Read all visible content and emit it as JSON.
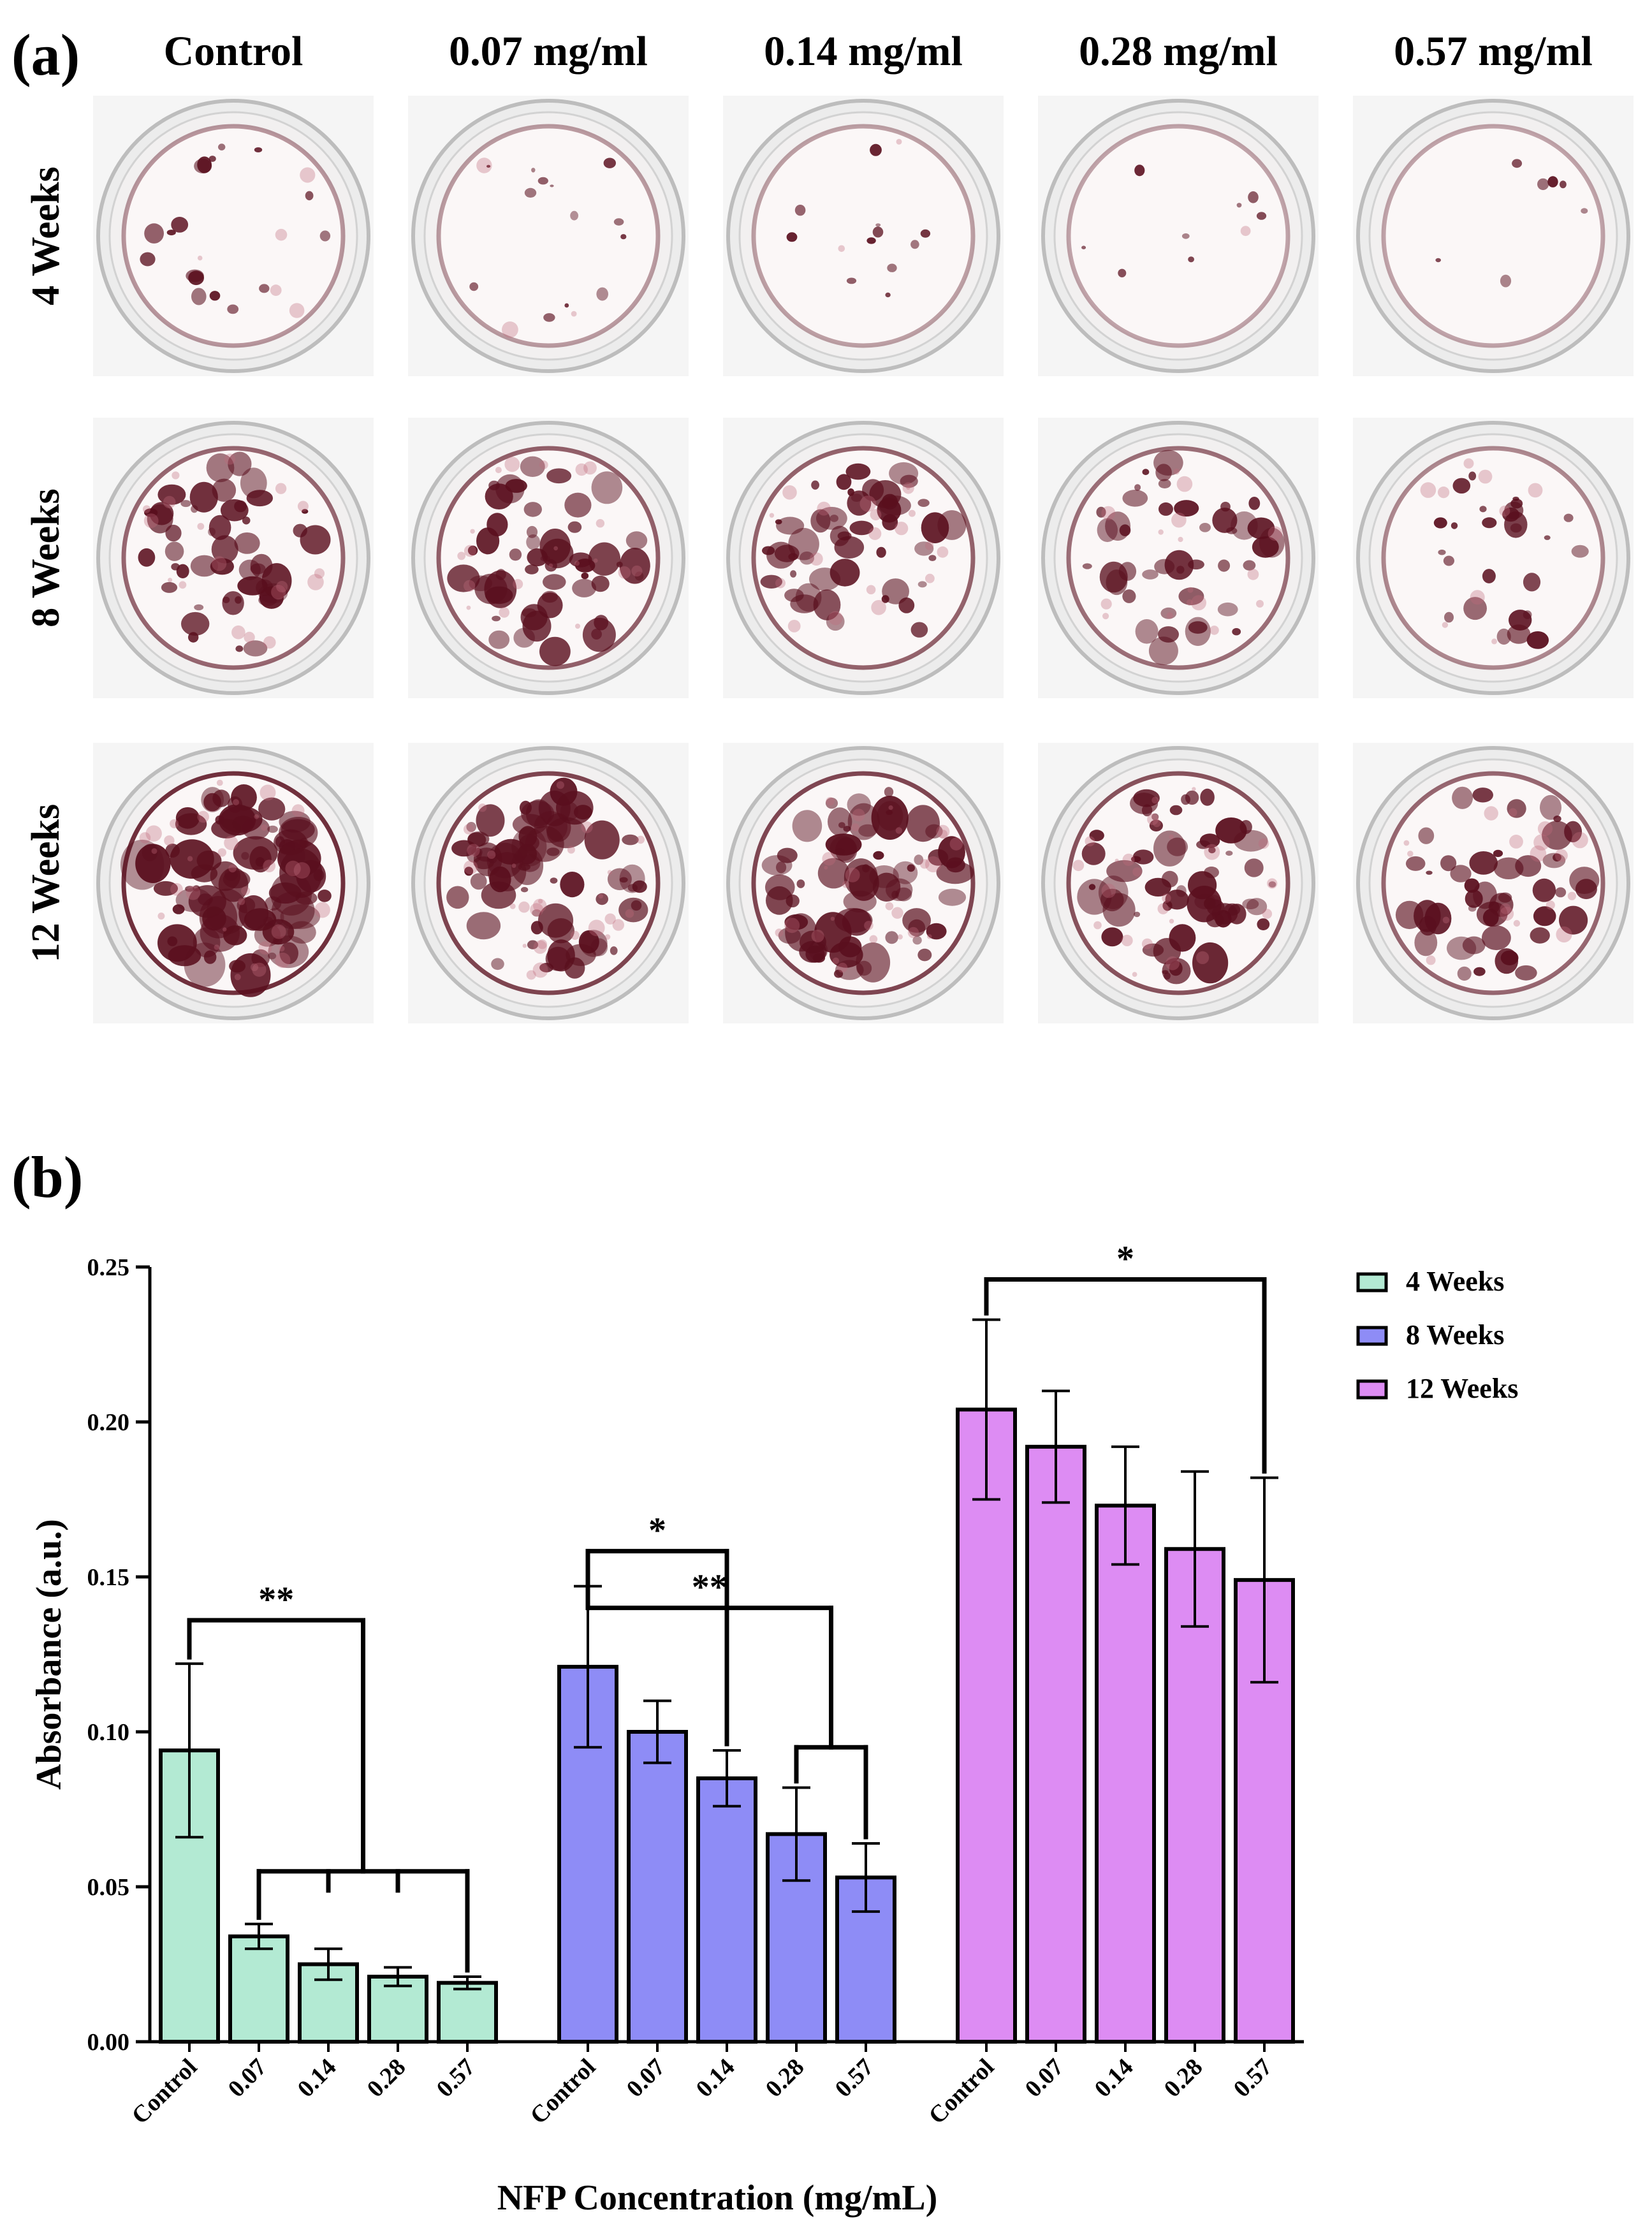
{
  "panel_a": {
    "label": "(a)",
    "columns": [
      "Control",
      "0.07 mg/ml",
      "0.14 mg/ml",
      "0.28 mg/ml",
      "0.57 mg/ml"
    ],
    "rows": [
      "4 Weeks",
      "8 Weeks",
      "12 Weeks"
    ],
    "stain_color": "#5a0f1e",
    "stain_level": [
      [
        0.12,
        0.08,
        0.05,
        0.02,
        0.01
      ],
      [
        0.45,
        0.5,
        0.48,
        0.4,
        0.22
      ],
      [
        0.85,
        0.7,
        0.68,
        0.6,
        0.45
      ]
    ]
  },
  "panel_b": {
    "label": "(b)",
    "chart_data": {
      "type": "bar",
      "title": "",
      "xlabel": "NFP  Concentration (mg/mL)",
      "ylabel": "Absorbance (a.u.)",
      "ylim": [
        0,
        0.25
      ],
      "yticks": [
        "0.00",
        "0.05",
        "0.10",
        "0.15",
        "0.20",
        "0.25"
      ],
      "categories": [
        "Control",
        "0.07",
        "0.14",
        "0.28",
        "0.57"
      ],
      "legend_position": "top-right",
      "series": [
        {
          "name": "4 Weeks",
          "color": "#b3ead3",
          "values": [
            0.094,
            0.034,
            0.025,
            0.021,
            0.019
          ],
          "errors": [
            0.028,
            0.004,
            0.005,
            0.003,
            0.002
          ]
        },
        {
          "name": "8 Weeks",
          "color": "#8e8cf6",
          "values": [
            0.121,
            0.1,
            0.085,
            0.067,
            0.053
          ],
          "errors": [
            0.026,
            0.01,
            0.009,
            0.015,
            0.011
          ]
        },
        {
          "name": "12 Weeks",
          "color": "#dd8cf3",
          "values": [
            0.204,
            0.192,
            0.173,
            0.159,
            0.149
          ],
          "errors": [
            0.029,
            0.018,
            0.019,
            0.025,
            0.033
          ]
        }
      ],
      "significance": [
        {
          "series": 0,
          "from": 0,
          "to": [
            1,
            2,
            3,
            4
          ],
          "label": "**"
        },
        {
          "series": 1,
          "from": 0,
          "to": [
            2
          ],
          "label": "*"
        },
        {
          "series": 1,
          "from": 0,
          "to": [
            3,
            4
          ],
          "label": "**"
        },
        {
          "series": 2,
          "from": 0,
          "to": [
            4
          ],
          "label": "*"
        }
      ]
    }
  }
}
